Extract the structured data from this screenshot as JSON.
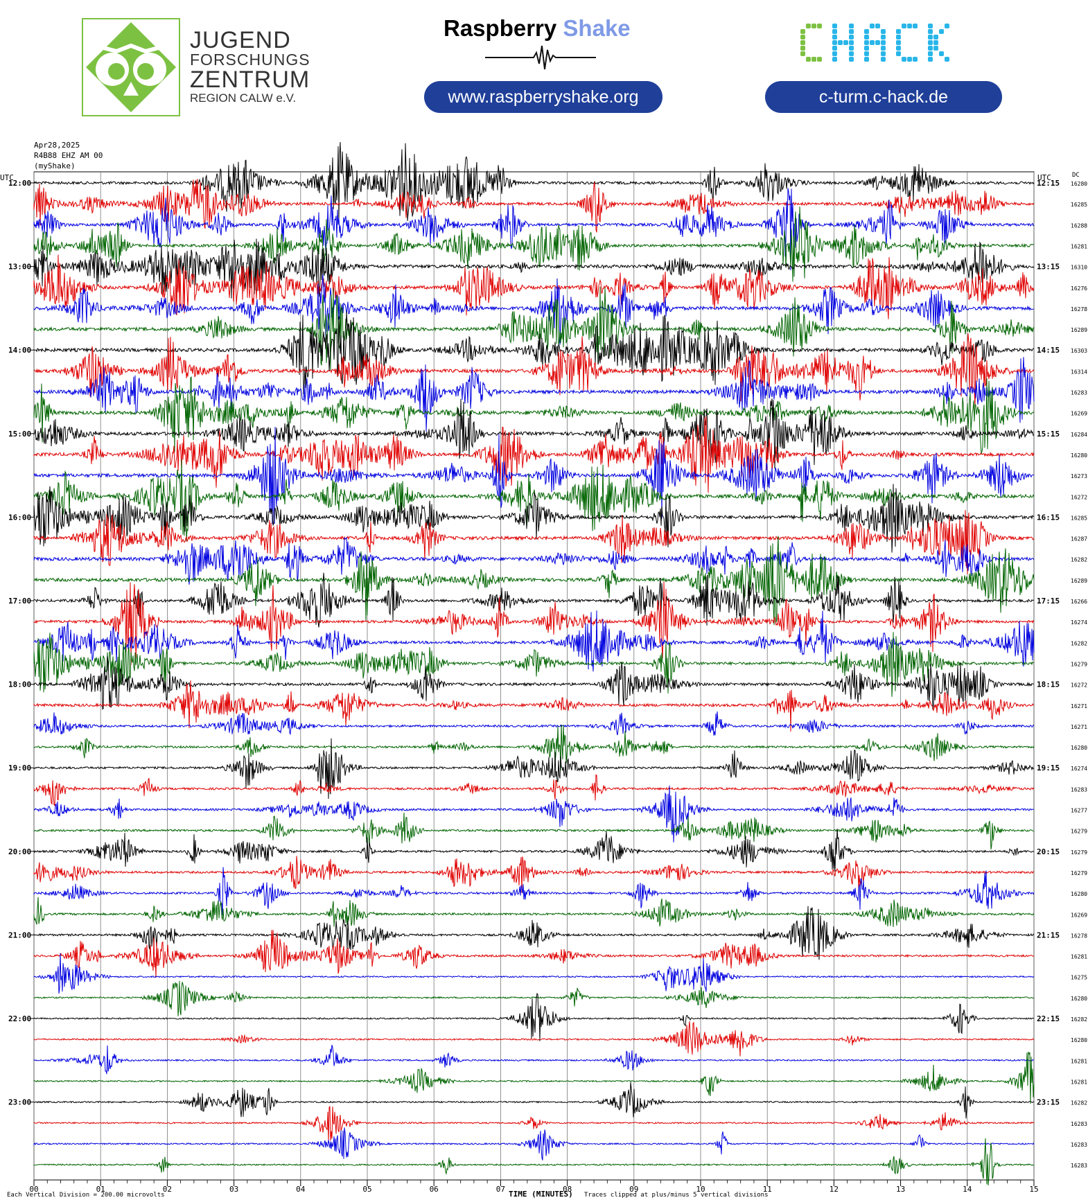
{
  "header": {
    "jfz": {
      "line1": "JUGEND",
      "line2": "FORSCHUNGS",
      "line3": "ZENTRUM",
      "line4": "REGION CALW e.V."
    },
    "raspberry": {
      "word1": "Raspberry",
      "word2": "Shake",
      "url": "www.raspberryshake.org"
    },
    "chack": {
      "logo": "CHACK",
      "url": "c-turm.c-hack.de"
    },
    "colors": {
      "jfz_green": "#7dc142",
      "rs_blue": "#7f9ae6",
      "pill_blue": "#1f3f99",
      "chack_green": "#7dc142",
      "chack_cyan": "#29b6e8"
    }
  },
  "meta": {
    "date": "Apr28,2025",
    "station": "R4B88 EHZ AM 00",
    "source": "(myShake)",
    "utc_left": "UTC",
    "utc_right": "UTC",
    "dc_label": "DC",
    "xlabel": "TIME (MINUTES)",
    "scale_note": "Each Vertical Division =  200.00 microvolts",
    "clip_note": "Traces clipped at plus/minus 5 vertical divisions"
  },
  "chart_data": {
    "type": "line",
    "title": "",
    "xlabel": "TIME (MINUTES)",
    "ylabel": "",
    "xlim": [
      0,
      15
    ],
    "x_ticks": [
      "00",
      "01",
      "02",
      "03",
      "04",
      "05",
      "06",
      "07",
      "08",
      "09",
      "10",
      "11",
      "12",
      "13",
      "14",
      "15"
    ],
    "grid": true,
    "trace_colors": [
      "#000000",
      "#e00000",
      "#0000e0",
      "#006400"
    ],
    "hour_labels_left": [
      "12:00",
      "13:00",
      "14:00",
      "15:00",
      "16:00",
      "17:00",
      "18:00",
      "19:00",
      "20:00",
      "21:00",
      "22:00",
      "23:00"
    ],
    "hour_labels_right": [
      "12:15",
      "13:15",
      "14:15",
      "15:15",
      "16:15",
      "17:15",
      "18:15",
      "19:15",
      "20:15",
      "21:15",
      "22:15",
      "23:15"
    ],
    "traces": [
      {
        "start": "12:00",
        "dc": "16280"
      },
      {
        "start": "12:15",
        "dc": "16285"
      },
      {
        "start": "12:30",
        "dc": "16288"
      },
      {
        "start": "12:45",
        "dc": "16281"
      },
      {
        "start": "13:00",
        "dc": "16310"
      },
      {
        "start": "13:15",
        "dc": "16276"
      },
      {
        "start": "13:30",
        "dc": "16278"
      },
      {
        "start": "13:45",
        "dc": "16289"
      },
      {
        "start": "14:00",
        "dc": "16303"
      },
      {
        "start": "14:15",
        "dc": "16314"
      },
      {
        "start": "14:30",
        "dc": "16283"
      },
      {
        "start": "14:45",
        "dc": "16269"
      },
      {
        "start": "15:00",
        "dc": "16284"
      },
      {
        "start": "15:15",
        "dc": "16280"
      },
      {
        "start": "15:30",
        "dc": "16273"
      },
      {
        "start": "15:45",
        "dc": "16272"
      },
      {
        "start": "16:00",
        "dc": "16285"
      },
      {
        "start": "16:15",
        "dc": "16287"
      },
      {
        "start": "16:30",
        "dc": "16282"
      },
      {
        "start": "16:45",
        "dc": "16289"
      },
      {
        "start": "17:00",
        "dc": "16266"
      },
      {
        "start": "17:15",
        "dc": "16274"
      },
      {
        "start": "17:30",
        "dc": "16282"
      },
      {
        "start": "17:45",
        "dc": "16279"
      },
      {
        "start": "18:00",
        "dc": "16272"
      },
      {
        "start": "18:15",
        "dc": "16271"
      },
      {
        "start": "18:30",
        "dc": "16271"
      },
      {
        "start": "18:45",
        "dc": "16280"
      },
      {
        "start": "19:00",
        "dc": "16274"
      },
      {
        "start": "19:15",
        "dc": "16283"
      },
      {
        "start": "19:30",
        "dc": "16277"
      },
      {
        "start": "19:45",
        "dc": "16279"
      },
      {
        "start": "20:00",
        "dc": "16279"
      },
      {
        "start": "20:15",
        "dc": "16279"
      },
      {
        "start": "20:30",
        "dc": "16280"
      },
      {
        "start": "20:45",
        "dc": "16269"
      },
      {
        "start": "21:00",
        "dc": "16278"
      },
      {
        "start": "21:15",
        "dc": "16281"
      },
      {
        "start": "21:30",
        "dc": "16275"
      },
      {
        "start": "21:45",
        "dc": "16280"
      },
      {
        "start": "22:00",
        "dc": "16282"
      },
      {
        "start": "22:15",
        "dc": "16280"
      },
      {
        "start": "22:30",
        "dc": "16281"
      },
      {
        "start": "22:45",
        "dc": "16281"
      },
      {
        "start": "23:00",
        "dc": "16282"
      },
      {
        "start": "23:15",
        "dc": "16283"
      },
      {
        "start": "23:30",
        "dc": "16283"
      },
      {
        "start": "23:45",
        "dc": "16283"
      }
    ],
    "activity": [
      3,
      3,
      3,
      3,
      4,
      4,
      4,
      4,
      4,
      4,
      4,
      4,
      4,
      4,
      4,
      4,
      4,
      4,
      4,
      4,
      3,
      3,
      3,
      3,
      3,
      3,
      2,
      2,
      2,
      2,
      2,
      2,
      2,
      2,
      2,
      2,
      2,
      2,
      1,
      1,
      1,
      1,
      1,
      1,
      1,
      1,
      1,
      1
    ]
  }
}
